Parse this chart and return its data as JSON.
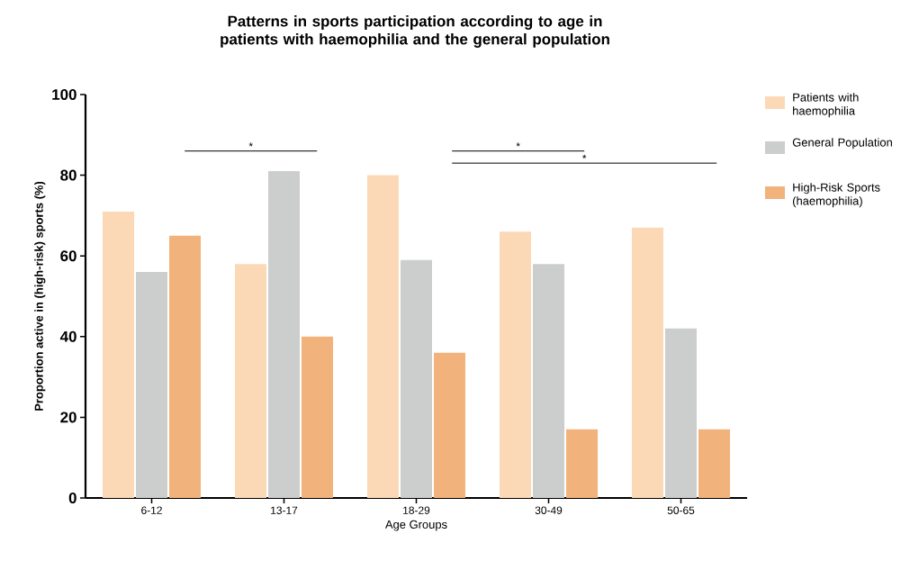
{
  "chart_data": {
    "type": "bar",
    "title": "Patterns in sports participation according to age in patients with haemophilia and the general population",
    "xlabel": "Age Groups",
    "ylabel": "Proportion active in (high-risk) sports (%)",
    "categories": [
      "6-12",
      "13-17",
      "18-29",
      "30-49",
      "50-65"
    ],
    "series": [
      {
        "name": "Patients with haemophilia",
        "color": "#fcd9b6",
        "values": [
          71,
          58,
          80,
          66,
          67
        ]
      },
      {
        "name": "General Population",
        "color": "#cccdcd",
        "values": [
          56,
          81,
          59,
          58,
          42
        ]
      },
      {
        "name": "High-Risk Sports (haemophilia)",
        "color": "#f2b27b",
        "values": [
          65,
          40,
          36,
          17,
          17
        ]
      }
    ],
    "ylim": [
      0,
      100
    ],
    "yticks": [
      0,
      20,
      40,
      60,
      80,
      100
    ],
    "annotations": [
      "*",
      "*",
      "*"
    ],
    "legend": "right"
  }
}
